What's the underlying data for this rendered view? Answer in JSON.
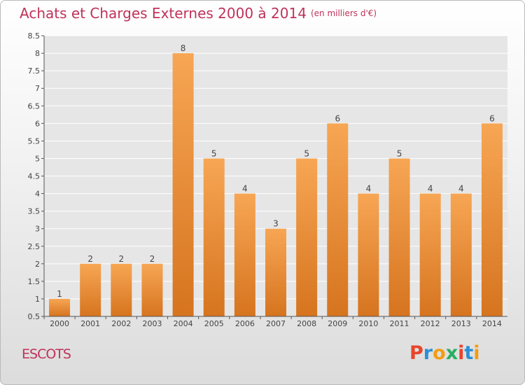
{
  "header": {
    "title": "Achats et Charges Externes 2000 à 2014",
    "subtitle": "(en milliers d'€)"
  },
  "footer": {
    "place": "ESCOTS",
    "logo_text": "Proxiti"
  },
  "colors": {
    "title": "#c0325a",
    "bar_top": "#f7a654",
    "bar_bottom": "#d6741f",
    "grid": "#ffffff",
    "logo_letters": [
      "#e8442a",
      "#2a8fd6",
      "#f39c12",
      "#27ae60",
      "#e8442a",
      "#2a8fd6",
      "#f39c12"
    ]
  },
  "chart_data": {
    "type": "bar",
    "title": "Achats et Charges Externes 2000 à 2014",
    "subtitle": "(en milliers d'€)",
    "categories": [
      "2000",
      "2001",
      "2002",
      "2003",
      "2004",
      "2005",
      "2006",
      "2007",
      "2008",
      "2009",
      "2010",
      "2011",
      "2012",
      "2013",
      "2014"
    ],
    "values": [
      1,
      2,
      2,
      2,
      8,
      5,
      4,
      3,
      5,
      6,
      4,
      5,
      4,
      4,
      6
    ],
    "data_labels": [
      "1",
      "2",
      "2",
      "2",
      "8",
      "5",
      "4",
      "3",
      "5",
      "6",
      "4",
      "5",
      "4",
      "4",
      "6"
    ],
    "y_ticks": [
      0.5,
      1,
      1.5,
      2,
      2.5,
      3,
      3.5,
      4,
      4.5,
      5,
      5.5,
      6,
      6.5,
      7,
      7.5,
      8,
      8.5
    ],
    "y_tick_labels": [
      "0.5",
      "1",
      "1.5",
      "2",
      "2.5",
      "3",
      "3.5",
      "4",
      "4.5",
      "5",
      "5.5",
      "6",
      "6.5",
      "7",
      "7.5",
      "8",
      "8.5"
    ],
    "ylim": [
      0.5,
      8.5
    ],
    "grid": true,
    "xlabel": "",
    "ylabel": ""
  }
}
